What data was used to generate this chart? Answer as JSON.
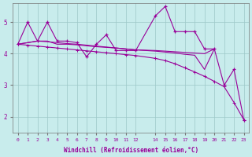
{
  "xlabel": "Windchill (Refroidissement éolien,°C)",
  "background_color": "#c8ecec",
  "line_color": "#990099",
  "grid_color": "#b0d0d0",
  "xlim": [
    -0.5,
    23.5
  ],
  "ylim": [
    1.5,
    5.6
  ],
  "yticks": [
    2,
    3,
    4,
    5
  ],
  "xticks": [
    0,
    1,
    2,
    3,
    4,
    5,
    6,
    7,
    8,
    9,
    10,
    11,
    12,
    14,
    15,
    16,
    17,
    18,
    19,
    20,
    21,
    22,
    23
  ],
  "series_main": [
    [
      0,
      4.3
    ],
    [
      1,
      5.0
    ],
    [
      2,
      4.4
    ],
    [
      3,
      5.0
    ],
    [
      4,
      4.4
    ],
    [
      5,
      4.4
    ],
    [
      6,
      4.35
    ],
    [
      7,
      3.9
    ],
    [
      8,
      4.3
    ],
    [
      9,
      4.6
    ],
    [
      10,
      4.1
    ],
    [
      11,
      4.1
    ],
    [
      12,
      4.1
    ],
    [
      14,
      5.2
    ],
    [
      15,
      5.5
    ],
    [
      16,
      4.7
    ],
    [
      17,
      4.7
    ],
    [
      18,
      4.7
    ],
    [
      19,
      4.15
    ],
    [
      20,
      4.15
    ],
    [
      21,
      3.0
    ],
    [
      22,
      3.5
    ],
    [
      23,
      1.9
    ]
  ],
  "series_flat": [
    [
      0,
      4.3
    ],
    [
      2,
      4.4
    ],
    [
      3,
      4.4
    ],
    [
      4,
      4.3
    ],
    [
      5,
      4.3
    ],
    [
      6,
      4.28
    ],
    [
      7,
      4.25
    ],
    [
      8,
      4.22
    ],
    [
      9,
      4.2
    ],
    [
      10,
      4.18
    ],
    [
      11,
      4.15
    ],
    [
      12,
      4.12
    ],
    [
      14,
      4.1
    ],
    [
      15,
      4.08
    ],
    [
      16,
      4.06
    ],
    [
      17,
      4.04
    ],
    [
      18,
      4.02
    ],
    [
      19,
      4.0
    ],
    [
      20,
      4.15
    ]
  ],
  "series_diagonal": [
    [
      0,
      4.3
    ],
    [
      1,
      4.27
    ],
    [
      2,
      4.24
    ],
    [
      3,
      4.21
    ],
    [
      4,
      4.18
    ],
    [
      5,
      4.15
    ],
    [
      6,
      4.12
    ],
    [
      7,
      4.09
    ],
    [
      8,
      4.06
    ],
    [
      9,
      4.03
    ],
    [
      10,
      4.0
    ],
    [
      11,
      3.97
    ],
    [
      12,
      3.94
    ],
    [
      14,
      3.85
    ],
    [
      15,
      3.78
    ],
    [
      16,
      3.68
    ],
    [
      17,
      3.55
    ],
    [
      18,
      3.42
    ],
    [
      19,
      3.28
    ],
    [
      20,
      3.12
    ],
    [
      21,
      2.95
    ],
    [
      22,
      2.45
    ],
    [
      23,
      1.9
    ]
  ],
  "series_mid": [
    [
      0,
      4.3
    ],
    [
      2,
      4.4
    ],
    [
      3,
      4.38
    ],
    [
      4,
      4.35
    ],
    [
      5,
      4.32
    ],
    [
      6,
      4.3
    ],
    [
      7,
      4.27
    ],
    [
      8,
      4.24
    ],
    [
      9,
      4.21
    ],
    [
      10,
      4.18
    ],
    [
      11,
      4.15
    ],
    [
      12,
      4.12
    ],
    [
      14,
      4.08
    ],
    [
      15,
      4.05
    ],
    [
      16,
      4.02
    ],
    [
      17,
      3.98
    ],
    [
      18,
      3.95
    ],
    [
      19,
      3.5
    ],
    [
      20,
      4.15
    ]
  ]
}
